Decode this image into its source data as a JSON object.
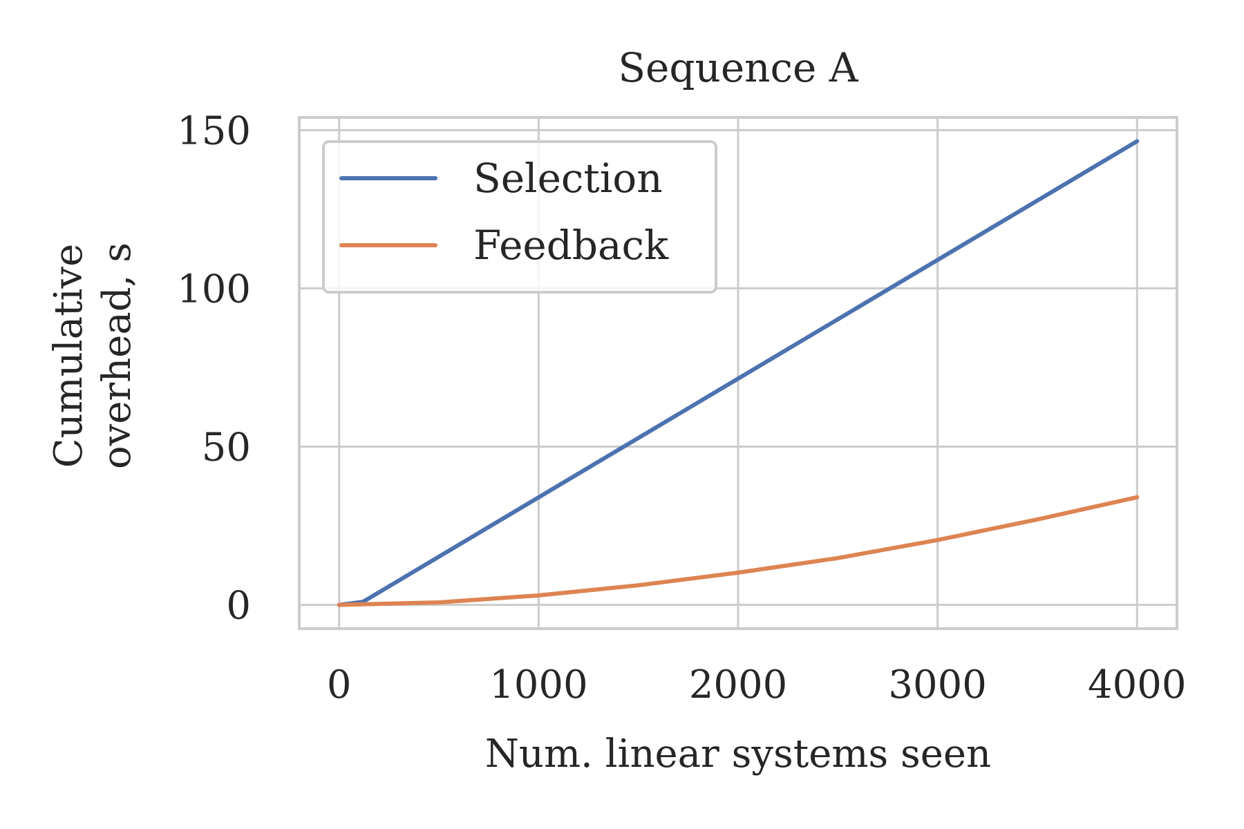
{
  "chart_data": {
    "type": "line",
    "title": "Sequence A",
    "xlabel": "Num. linear systems seen",
    "ylabel_lines": [
      "Cumulative",
      "overhead, s"
    ],
    "xlim": [
      -200,
      4200
    ],
    "ylim": [
      -7.5,
      154
    ],
    "xticks": [
      0,
      1000,
      2000,
      3000,
      4000
    ],
    "yticks": [
      0,
      50,
      100,
      150
    ],
    "grid": true,
    "legend_position": "top-left",
    "series": [
      {
        "name": "Selection",
        "color": "#4c72b0",
        "x": [
          0,
          120,
          4000
        ],
        "y": [
          0,
          1,
          146.5
        ]
      },
      {
        "name": "Feedback",
        "color": "#dd8452",
        "x": [
          0,
          500,
          1000,
          1500,
          2000,
          2500,
          3000,
          3500,
          4000
        ],
        "y": [
          0,
          0.8,
          3.0,
          6.2,
          10.2,
          14.8,
          20.5,
          27.0,
          34.0
        ]
      }
    ]
  }
}
